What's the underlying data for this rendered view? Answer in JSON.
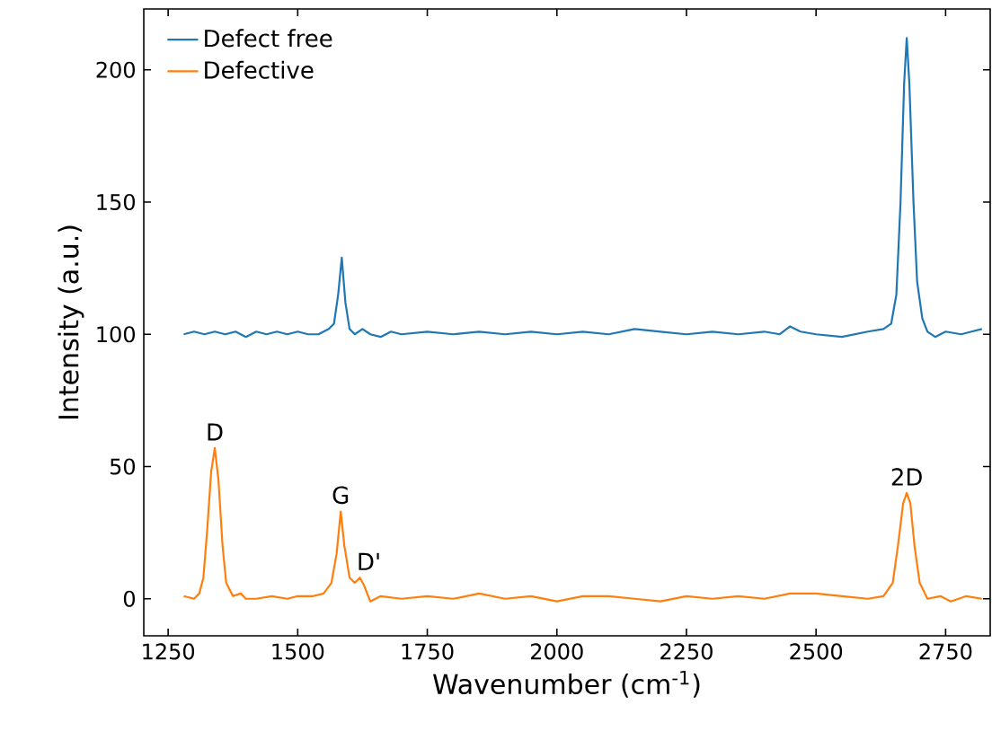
{
  "chart_data": {
    "type": "line",
    "xlabel": "Wavenumber (cm$^{-1}$)",
    "ylabel": "Intensity (a.u.)",
    "xlim": [
      1203,
      2836
    ],
    "ylim": [
      -14,
      223
    ],
    "xticks": [
      1250,
      1500,
      1750,
      2000,
      2250,
      2500,
      2750
    ],
    "yticks": [
      0,
      50,
      100,
      150,
      200
    ],
    "legend": "top left",
    "series": [
      {
        "name": "Defect free",
        "color": "#1f77b4",
        "x": [
          1280,
          1300,
          1320,
          1340,
          1360,
          1380,
          1400,
          1420,
          1440,
          1460,
          1480,
          1500,
          1520,
          1540,
          1560,
          1570,
          1578,
          1585,
          1592,
          1600,
          1610,
          1625,
          1640,
          1660,
          1680,
          1700,
          1750,
          1800,
          1850,
          1900,
          1950,
          2000,
          2050,
          2100,
          2150,
          2200,
          2250,
          2300,
          2350,
          2400,
          2430,
          2450,
          2470,
          2500,
          2550,
          2600,
          2630,
          2645,
          2655,
          2663,
          2670,
          2675,
          2680,
          2688,
          2695,
          2705,
          2715,
          2730,
          2750,
          2780,
          2800,
          2820
        ],
        "values": [
          100,
          101,
          100,
          101,
          100,
          101,
          99,
          101,
          100,
          101,
          100,
          101,
          100,
          100,
          102,
          104,
          115,
          129,
          112,
          102,
          100,
          102,
          100,
          99,
          101,
          100,
          101,
          100,
          101,
          100,
          101,
          100,
          101,
          100,
          102,
          101,
          100,
          101,
          100,
          101,
          100,
          103,
          101,
          100,
          99,
          101,
          102,
          104,
          115,
          150,
          195,
          212,
          195,
          150,
          120,
          106,
          101,
          99,
          101,
          100,
          101,
          102
        ]
      },
      {
        "name": "Defective",
        "color": "#ff7f0e",
        "x": [
          1280,
          1300,
          1310,
          1318,
          1325,
          1333,
          1340,
          1347,
          1355,
          1362,
          1375,
          1390,
          1400,
          1420,
          1450,
          1480,
          1500,
          1530,
          1550,
          1565,
          1575,
          1583,
          1590,
          1600,
          1610,
          1620,
          1628,
          1640,
          1660,
          1700,
          1750,
          1800,
          1850,
          1900,
          1950,
          2000,
          2050,
          2100,
          2150,
          2200,
          2250,
          2300,
          2350,
          2400,
          2450,
          2500,
          2550,
          2600,
          2630,
          2648,
          2658,
          2668,
          2675,
          2682,
          2690,
          2700,
          2715,
          2740,
          2760,
          2790,
          2820
        ],
        "values": [
          1,
          0,
          2,
          8,
          25,
          48,
          57,
          45,
          20,
          6,
          1,
          2,
          0,
          0,
          1,
          0,
          1,
          1,
          2,
          6,
          17,
          33,
          20,
          8,
          6,
          8,
          5,
          -1,
          1,
          0,
          1,
          0,
          2,
          0,
          1,
          -1,
          1,
          1,
          0,
          -1,
          1,
          0,
          1,
          0,
          2,
          2,
          1,
          0,
          1,
          6,
          20,
          36,
          40,
          36,
          20,
          6,
          0,
          1,
          -1,
          1,
          0
        ]
      }
    ],
    "annotations": [
      {
        "text": "D",
        "x": 1340,
        "y": 57
      },
      {
        "text": "G",
        "x": 1583,
        "y": 33
      },
      {
        "text": "D'",
        "x": 1620,
        "y": 8
      },
      {
        "text": "2D",
        "x": 2675,
        "y": 40
      }
    ]
  }
}
